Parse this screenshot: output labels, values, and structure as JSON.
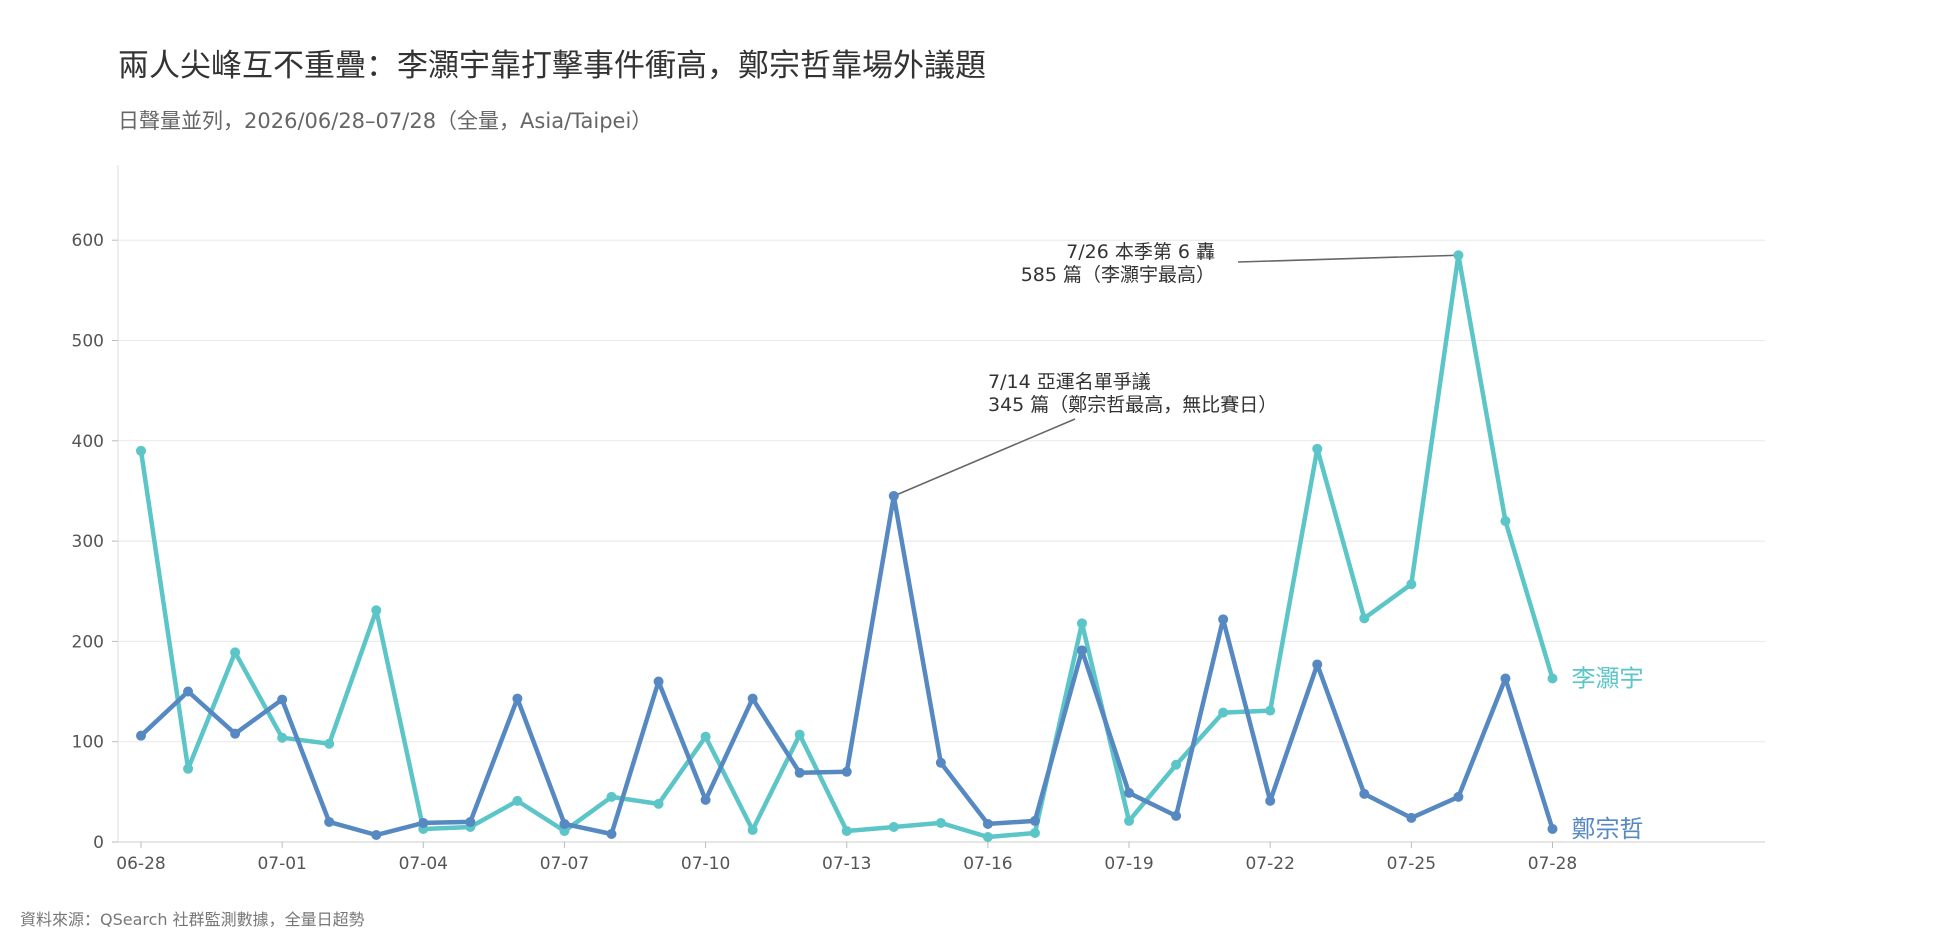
{
  "header": {
    "title": "兩人尖峰互不重疊：李灝宇靠打擊事件衝高，鄭宗哲靠場外議題",
    "subtitle": "日聲量並列，2026/06/28–07/28（全量，Asia/Taipei）"
  },
  "footer": {
    "source": "資料來源：QSearch 社群監測數據，全量日超勢"
  },
  "chart_data": {
    "type": "line",
    "title": "兩人尖峰互不重疊：李灝宇靠打擊事件衝高，鄭宗哲靠場外議題",
    "subtitle": "日聲量並列，2026/06/28–07/28（全量，Asia/Taipei）",
    "xlabel": "",
    "ylabel": "",
    "x": [
      "06-28",
      "06-29",
      "06-30",
      "07-01",
      "07-02",
      "07-03",
      "07-04",
      "07-05",
      "07-06",
      "07-07",
      "07-08",
      "07-09",
      "07-10",
      "07-11",
      "07-12",
      "07-13",
      "07-14",
      "07-15",
      "07-16",
      "07-17",
      "07-18",
      "07-19",
      "07-20",
      "07-21",
      "07-22",
      "07-23",
      "07-24",
      "07-25",
      "07-26",
      "07-27",
      "07-28"
    ],
    "x_tick_labels": [
      "06-28",
      "07-01",
      "07-04",
      "07-07",
      "07-10",
      "07-13",
      "07-16",
      "07-19",
      "07-22",
      "07-25",
      "07-28"
    ],
    "y_ticks": [
      0,
      100,
      200,
      300,
      400,
      500,
      600
    ],
    "ylim": [
      0,
      675
    ],
    "grid": true,
    "legend": "direct labels at line ends",
    "series": [
      {
        "name": "李灝宇",
        "color": "#5bc5c7",
        "values": [
          390,
          73,
          189,
          104,
          98,
          231,
          13,
          15,
          41,
          11,
          45,
          38,
          105,
          12,
          107,
          11,
          15,
          19,
          5,
          9,
          218,
          21,
          77,
          129,
          131,
          392,
          223,
          257,
          585,
          320,
          163
        ]
      },
      {
        "name": "鄭宗哲",
        "color": "#5688c2",
        "values": [
          106,
          150,
          108,
          142,
          20,
          7,
          19,
          20,
          143,
          18,
          8,
          160,
          42,
          143,
          69,
          70,
          345,
          79,
          18,
          21,
          191,
          49,
          26,
          222,
          41,
          177,
          48,
          24,
          45,
          163,
          13
        ]
      }
    ],
    "annotations": [
      {
        "series": "李灝宇",
        "x": "07-26",
        "y": 585,
        "lines": [
          "7/26 本季第 6 轟",
          "585 篇（李灝宇最高）"
        ]
      },
      {
        "series": "鄭宗哲",
        "x": "07-14",
        "y": 345,
        "lines": [
          "7/14 亞運名單爭議",
          "345 篇（鄭宗哲最高，無比賽日）"
        ]
      }
    ]
  }
}
